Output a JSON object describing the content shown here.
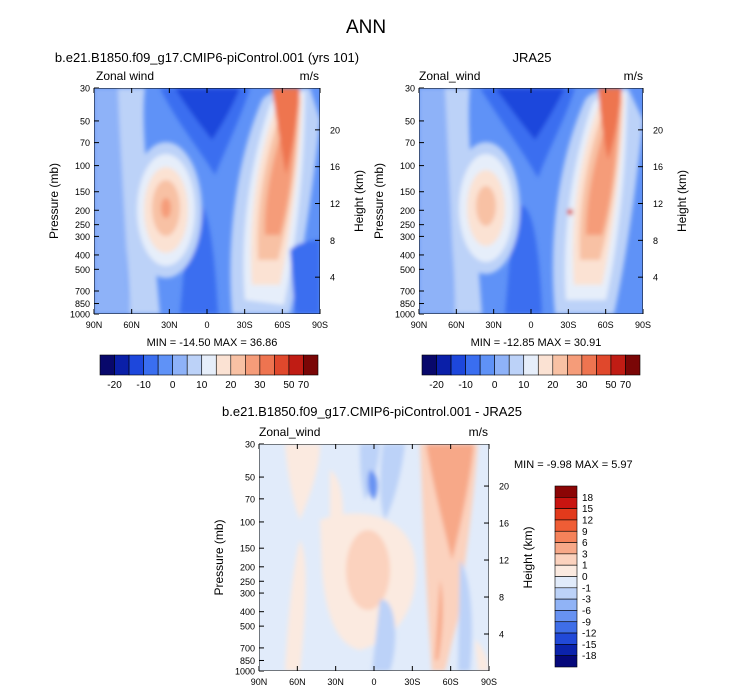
{
  "figure": {
    "title": "ANN",
    "panels": [
      {
        "title": "b.e21.B1850.f09_g17.CMIP6-piControl.001 (yrs 101)",
        "variable": "Zonal wind",
        "units": "m/s",
        "stats": "MIN = -14.50   MAX = 36.86"
      },
      {
        "title": "JRA25",
        "variable": "Zonal_wind",
        "units": "m/s",
        "stats": "MIN = -12.85   MAX = 30.91"
      },
      {
        "title": "b.e21.B1850.f09_g17.CMIP6-piControl.001 - JRA25",
        "variable": "Zonal_wind",
        "units": "m/s",
        "stats": "MIN = -9.98   MAX =  5.97"
      }
    ]
  },
  "chart_data": [
    {
      "type": "heatmap",
      "title": "b.e21.B1850.f09_g17.CMIP6-piControl.001 (yrs 101)",
      "xlabel": "",
      "ylabel": "Pressure (mb)",
      "y2label": "Height (km)",
      "x_ticks": [
        "90N",
        "60N",
        "30N",
        "0",
        "30S",
        "60S",
        "90S"
      ],
      "y_ticks": [
        30,
        50,
        70,
        100,
        150,
        200,
        250,
        300,
        400,
        500,
        700,
        850,
        1000
      ],
      "y2_ticks": [
        4,
        8,
        12,
        16,
        20
      ],
      "min": -14.5,
      "max": 36.86,
      "colorbar_levels": [
        -20,
        -10,
        0,
        10,
        20,
        30,
        50,
        70
      ]
    },
    {
      "type": "heatmap",
      "title": "JRA25",
      "xlabel": "",
      "ylabel": "Pressure (mb)",
      "y2label": "Height (km)",
      "x_ticks": [
        "90N",
        "60N",
        "30N",
        "0",
        "30S",
        "60S",
        "90S"
      ],
      "y_ticks": [
        30,
        50,
        70,
        100,
        150,
        200,
        250,
        300,
        400,
        500,
        700,
        850,
        1000
      ],
      "y2_ticks": [
        4,
        8,
        12,
        16,
        20
      ],
      "min": -12.85,
      "max": 30.91,
      "colorbar_levels": [
        -20,
        -10,
        0,
        10,
        20,
        30,
        50,
        70
      ]
    },
    {
      "type": "heatmap",
      "title": "b.e21.B1850.f09_g17.CMIP6-piControl.001 - JRA25",
      "xlabel": "",
      "ylabel": "Pressure (mb)",
      "y2label": "Height (km)",
      "x_ticks": [
        "90N",
        "60N",
        "30N",
        "0",
        "30S",
        "60S",
        "90S"
      ],
      "y_ticks": [
        30,
        50,
        70,
        100,
        150,
        200,
        250,
        300,
        400,
        500,
        700,
        850,
        1000
      ],
      "y2_ticks": [
        4,
        8,
        12,
        16,
        20
      ],
      "min": -9.98,
      "max": 5.97,
      "colorbar_levels": [
        18,
        15,
        12,
        9,
        6,
        3,
        1,
        0,
        -1,
        -3,
        -6,
        -9,
        -12,
        -15,
        -18
      ]
    }
  ],
  "colors": {
    "top_colorbar": [
      "#08086b",
      "#0a1fa8",
      "#1d47dc",
      "#3a6ef0",
      "#5f92f7",
      "#8eb2f8",
      "#bcd2f8",
      "#e6eefa",
      "#fbe2d3",
      "#f8c1a4",
      "#f59c79",
      "#ee7450",
      "#e0482c",
      "#c01c14",
      "#7a0606"
    ],
    "diff_colorbar": [
      "#8b0505",
      "#c81410",
      "#e23a1c",
      "#ef5d35",
      "#f5825a",
      "#f7a888",
      "#fbd2be",
      "#fbeae0",
      "#e1ebfa",
      "#bcd2f8",
      "#90b3f6",
      "#6792f2",
      "#3f6ee8",
      "#2149d8",
      "#0b23ac",
      "#05087a"
    ]
  }
}
